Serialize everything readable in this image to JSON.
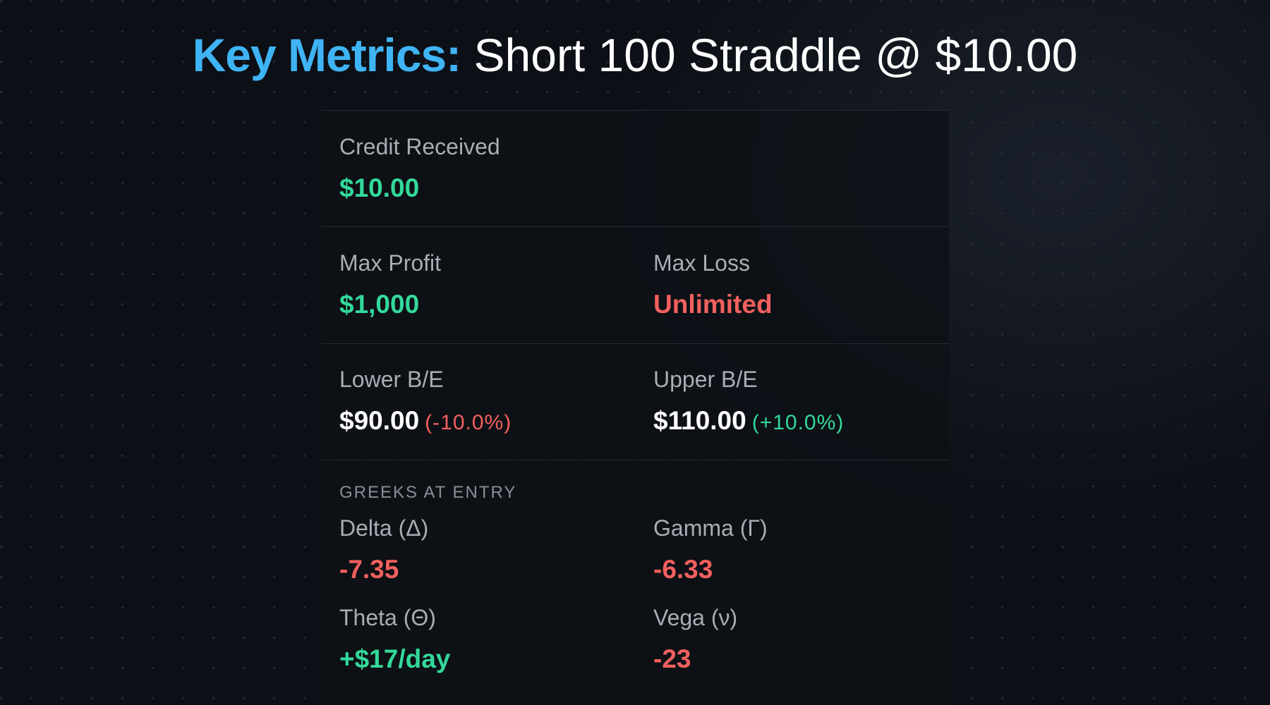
{
  "title": {
    "accent": "Key Metrics:",
    "rest": "Short 100 Straddle @ $10.00"
  },
  "credit": {
    "label": "Credit Received",
    "value": "$10.00"
  },
  "max_profit": {
    "label": "Max Profit",
    "value": "$1,000"
  },
  "max_loss": {
    "label": "Max Loss",
    "value": "Unlimited"
  },
  "lower_be": {
    "label": "Lower B/E",
    "value": "$90.00",
    "pct": "(-10.0%)"
  },
  "upper_be": {
    "label": "Upper B/E",
    "value": "$110.00",
    "pct": "(+10.0%)"
  },
  "greeks": {
    "heading": "GREEKS AT ENTRY",
    "delta": {
      "label": "Delta (Δ)",
      "value": "-7.35"
    },
    "gamma": {
      "label": "Gamma (Γ)",
      "value": "-6.33"
    },
    "theta": {
      "label": "Theta (Θ)",
      "value": "+$17/day"
    },
    "vega": {
      "label": "Vega (ν)",
      "value": "-23"
    }
  },
  "colors": {
    "accent": "#3fb4f5",
    "positive": "#33d99a",
    "negative": "#f2605e",
    "background": "#0c0f15"
  }
}
